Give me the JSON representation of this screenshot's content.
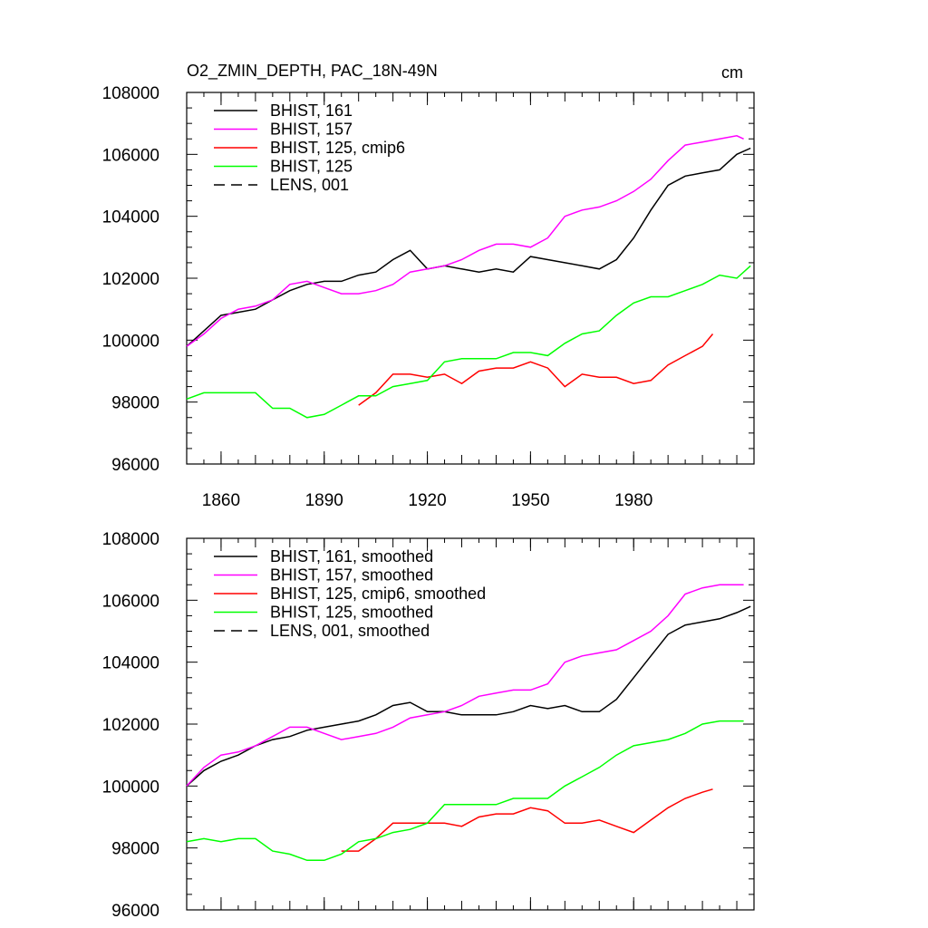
{
  "header": {
    "title": "O2_ZMIN_DEPTH, PAC_18N-49N",
    "units": "cm"
  },
  "chart_data": [
    {
      "type": "line",
      "xlim": [
        1850,
        2015
      ],
      "ylim": [
        96000,
        108000
      ],
      "x_ticks": [
        1860,
        1890,
        1920,
        1950,
        1980
      ],
      "y_ticks": [
        96000,
        98000,
        100000,
        102000,
        104000,
        106000,
        108000
      ],
      "legend_position": "top-left",
      "series": [
        {
          "name": "BHIST, 161",
          "color": "#000000",
          "dash": "solid",
          "x": [
            1850,
            1855,
            1860,
            1865,
            1870,
            1875,
            1880,
            1885,
            1890,
            1895,
            1900,
            1905,
            1910,
            1915,
            1920,
            1925,
            1930,
            1935,
            1940,
            1945,
            1950,
            1955,
            1960,
            1965,
            1970,
            1975,
            1980,
            1985,
            1990,
            1995,
            2000,
            2005,
            2010,
            2014
          ],
          "y": [
            99800,
            100300,
            100800,
            100900,
            101000,
            101300,
            101600,
            101800,
            101900,
            101900,
            102100,
            102200,
            102600,
            102900,
            102300,
            102400,
            102300,
            102200,
            102300,
            102200,
            102700,
            102600,
            102500,
            102400,
            102300,
            102600,
            103300,
            104200,
            105000,
            105300,
            105400,
            105500,
            106000,
            106200
          ]
        },
        {
          "name": "BHIST, 157",
          "color": "#ff00ff",
          "dash": "solid",
          "x": [
            1850,
            1855,
            1860,
            1865,
            1870,
            1875,
            1880,
            1885,
            1890,
            1895,
            1900,
            1905,
            1910,
            1915,
            1920,
            1925,
            1930,
            1935,
            1940,
            1945,
            1950,
            1955,
            1960,
            1965,
            1970,
            1975,
            1980,
            1985,
            1990,
            1995,
            2000,
            2005,
            2010,
            2012
          ],
          "y": [
            99800,
            100200,
            100700,
            101000,
            101100,
            101300,
            101800,
            101900,
            101700,
            101500,
            101500,
            101600,
            101800,
            102200,
            102300,
            102400,
            102600,
            102900,
            103100,
            103100,
            103000,
            103300,
            104000,
            104200,
            104300,
            104500,
            104800,
            105200,
            105800,
            106300,
            106400,
            106500,
            106600,
            106500
          ]
        },
        {
          "name": "BHIST, 125, cmip6",
          "color": "#ff0000",
          "dash": "solid",
          "x": [
            1900,
            1905,
            1910,
            1915,
            1920,
            1925,
            1930,
            1935,
            1940,
            1945,
            1950,
            1955,
            1960,
            1965,
            1970,
            1975,
            1980,
            1985,
            1990,
            1995,
            2000,
            2003
          ],
          "y": [
            97900,
            98300,
            98900,
            98900,
            98800,
            98900,
            98600,
            99000,
            99100,
            99100,
            99300,
            99100,
            98500,
            98900,
            98800,
            98800,
            98600,
            98700,
            99200,
            99500,
            99800,
            100200
          ]
        },
        {
          "name": "BHIST, 125",
          "color": "#00ff00",
          "dash": "solid",
          "x": [
            1850,
            1855,
            1860,
            1865,
            1870,
            1875,
            1880,
            1885,
            1890,
            1895,
            1900,
            1905,
            1910,
            1915,
            1920,
            1925,
            1930,
            1935,
            1940,
            1945,
            1950,
            1955,
            1960,
            1965,
            1970,
            1975,
            1980,
            1985,
            1990,
            1995,
            2000,
            2005,
            2010,
            2014
          ],
          "y": [
            98100,
            98300,
            98300,
            98300,
            98300,
            97800,
            97800,
            97500,
            97600,
            97900,
            98200,
            98200,
            98500,
            98600,
            98700,
            99300,
            99400,
            99400,
            99400,
            99600,
            99600,
            99500,
            99900,
            100200,
            100300,
            100800,
            101200,
            101400,
            101400,
            101600,
            101800,
            102100,
            102000,
            102400
          ]
        },
        {
          "name": "LENS, 001",
          "color": "#000000",
          "dash": "dashed",
          "x": [],
          "y": []
        }
      ]
    },
    {
      "type": "line",
      "xlim": [
        1850,
        2015
      ],
      "ylim": [
        96000,
        108000
      ],
      "x_ticks": [
        1860,
        1890,
        1920,
        1950,
        1980
      ],
      "y_ticks": [
        96000,
        98000,
        100000,
        102000,
        104000,
        106000,
        108000
      ],
      "legend_position": "top-left",
      "series": [
        {
          "name": "BHIST, 161, smoothed",
          "color": "#000000",
          "dash": "solid",
          "x": [
            1850,
            1855,
            1860,
            1865,
            1870,
            1875,
            1880,
            1885,
            1890,
            1895,
            1900,
            1905,
            1910,
            1915,
            1920,
            1925,
            1930,
            1935,
            1940,
            1945,
            1950,
            1955,
            1960,
            1965,
            1970,
            1975,
            1980,
            1985,
            1990,
            1995,
            2000,
            2005,
            2010,
            2014
          ],
          "y": [
            100000,
            100500,
            100800,
            101000,
            101300,
            101500,
            101600,
            101800,
            101900,
            102000,
            102100,
            102300,
            102600,
            102700,
            102400,
            102400,
            102300,
            102300,
            102300,
            102400,
            102600,
            102500,
            102600,
            102400,
            102400,
            102800,
            103500,
            104200,
            104900,
            105200,
            105300,
            105400,
            105600,
            105800
          ]
        },
        {
          "name": "BHIST, 157, smoothed",
          "color": "#ff00ff",
          "dash": "solid",
          "x": [
            1850,
            1855,
            1860,
            1865,
            1870,
            1875,
            1880,
            1885,
            1890,
            1895,
            1900,
            1905,
            1910,
            1915,
            1920,
            1925,
            1930,
            1935,
            1940,
            1945,
            1950,
            1955,
            1960,
            1965,
            1970,
            1975,
            1980,
            1985,
            1990,
            1995,
            2000,
            2005,
            2010,
            2012
          ],
          "y": [
            100000,
            100600,
            101000,
            101100,
            101300,
            101600,
            101900,
            101900,
            101700,
            101500,
            101600,
            101700,
            101900,
            102200,
            102300,
            102400,
            102600,
            102900,
            103000,
            103100,
            103100,
            103300,
            104000,
            104200,
            104300,
            104400,
            104700,
            105000,
            105500,
            106200,
            106400,
            106500,
            106500,
            106500
          ]
        },
        {
          "name": "BHIST, 125, cmip6, smoothed",
          "color": "#ff0000",
          "dash": "solid",
          "x": [
            1895,
            1900,
            1905,
            1910,
            1915,
            1920,
            1925,
            1930,
            1935,
            1940,
            1945,
            1950,
            1955,
            1960,
            1965,
            1970,
            1975,
            1980,
            1985,
            1990,
            1995,
            2000,
            2003
          ],
          "y": [
            97900,
            97900,
            98300,
            98800,
            98800,
            98800,
            98800,
            98700,
            99000,
            99100,
            99100,
            99300,
            99200,
            98800,
            98800,
            98900,
            98700,
            98500,
            98900,
            99300,
            99600,
            99800,
            99900
          ]
        },
        {
          "name": "BHIST, 125, smoothed",
          "color": "#00ff00",
          "dash": "solid",
          "x": [
            1850,
            1855,
            1860,
            1865,
            1870,
            1875,
            1880,
            1885,
            1890,
            1895,
            1900,
            1905,
            1910,
            1915,
            1920,
            1925,
            1930,
            1935,
            1940,
            1945,
            1950,
            1955,
            1960,
            1965,
            1970,
            1975,
            1980,
            1985,
            1990,
            1995,
            2000,
            2005,
            2010,
            2012
          ],
          "y": [
            98200,
            98300,
            98200,
            98300,
            98300,
            97900,
            97800,
            97600,
            97600,
            97800,
            98200,
            98300,
            98500,
            98600,
            98800,
            99400,
            99400,
            99400,
            99400,
            99600,
            99600,
            99600,
            100000,
            100300,
            100600,
            101000,
            101300,
            101400,
            101500,
            101700,
            102000,
            102100,
            102100,
            102100
          ]
        },
        {
          "name": "LENS, 001, smoothed",
          "color": "#000000",
          "dash": "dashed",
          "x": [],
          "y": []
        }
      ]
    }
  ]
}
